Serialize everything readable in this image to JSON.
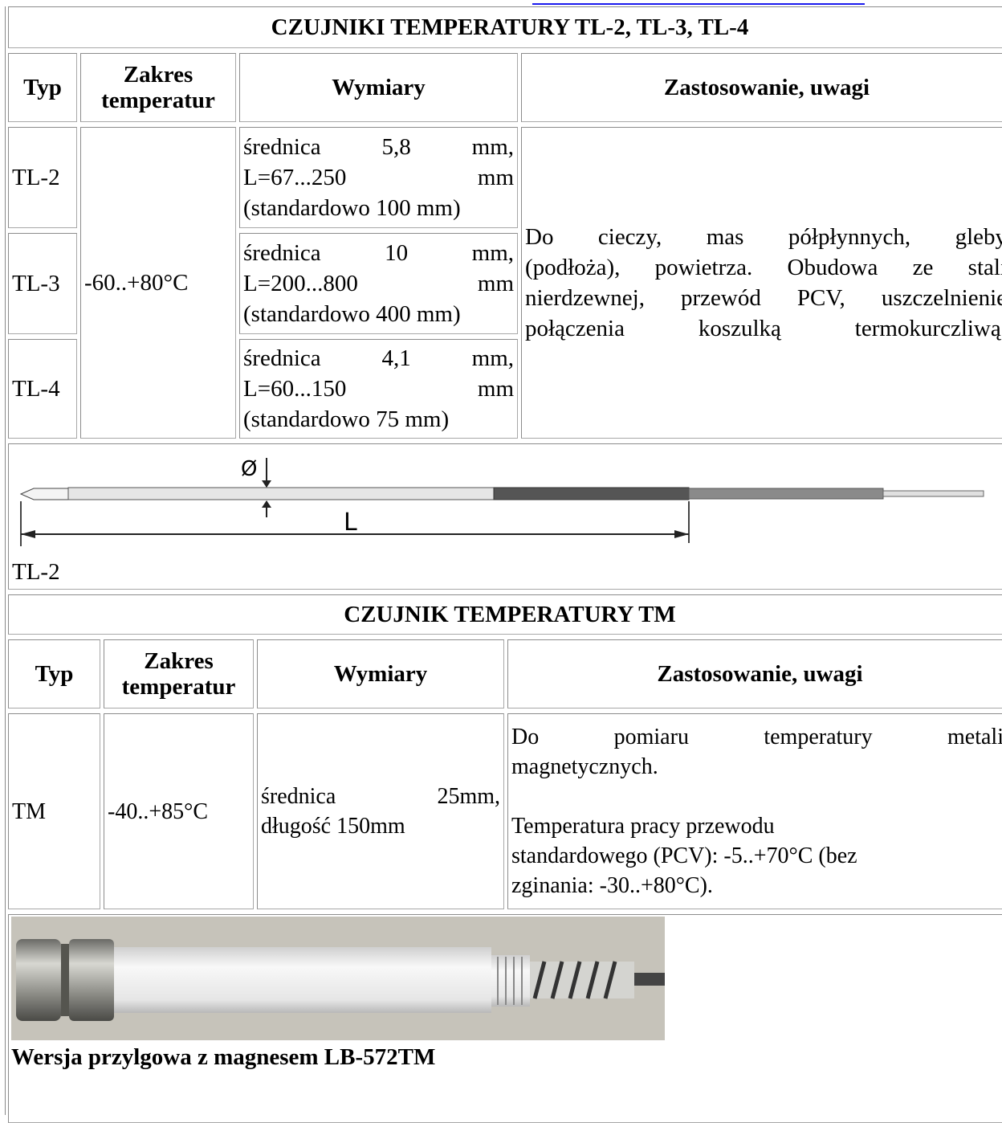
{
  "section1": {
    "title": "CZUJNIKI TEMPERATURY  TL-2, TL-3, TL-4",
    "headers": [
      "Typ",
      "Zakres temperatur",
      "Wymiary",
      "Zastosowanie, uwagi"
    ],
    "rows": [
      {
        "type": "TL-2",
        "dims": [
          "średnica 5,8 mm,",
          "L=67...250 mm",
          "(standardowo 100 mm)"
        ]
      },
      {
        "type": "TL-3",
        "dims": [
          "średnica 10 mm,",
          "L=200...800 mm",
          "(standardowo 400 mm)"
        ]
      },
      {
        "type": "TL-4",
        "dims": [
          "średnica 4,1 mm,",
          "L=60...150 mm",
          "(standardowo 75 mm)"
        ]
      }
    ],
    "range": "-60..+80°C",
    "notes": [
      "Do cieczy, mas półpłynnych, gleby",
      "(podłoża), powietrza. Obudowa ze stali",
      "nierdzewnej, przewód PCV, uszczelnienie",
      "połączenia koszulką termokurczliwą."
    ],
    "figure": {
      "diameter": "Ø",
      "length": "L",
      "caption": "TL-2"
    }
  },
  "section2": {
    "title": "CZUJNIK TEMPERATURY  TM",
    "headers": [
      "Typ",
      "Zakres temperatur",
      "Wymiary",
      "Zastosowanie, uwagi"
    ],
    "type": "TM",
    "range": "-40..+85°C",
    "dims": [
      "średnica 25mm,",
      "długość 150mm"
    ],
    "notes": [
      {
        "lines": [
          "Do pomiaru temperatury metali",
          "magnetycznych."
        ],
        "justified": true
      },
      {
        "lines": [
          "Temperatura pracy przewodu",
          "standardowego (PCV): -5..+70°C (bez",
          "zginania: -30..+80°C)."
        ],
        "justified": false
      }
    ],
    "caption": "Wersja przylgowa z magnesem LB-572TM"
  }
}
